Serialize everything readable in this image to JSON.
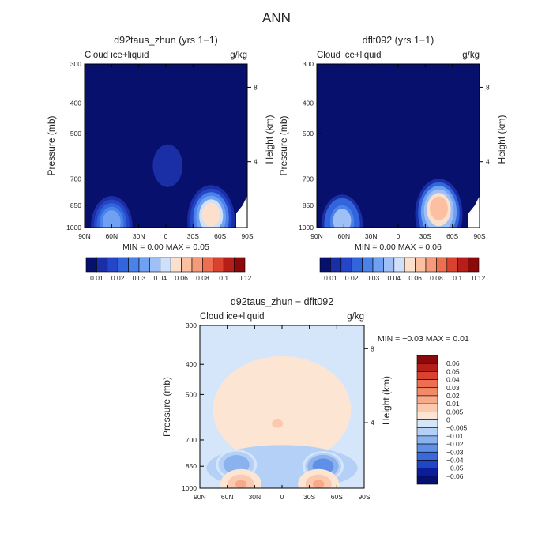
{
  "page": {
    "title": "ANN"
  },
  "chart_data": [
    {
      "type": "heatmap",
      "title": "d92taus_zhun (yrs 1−1)",
      "left_label": "Cloud ice+liquid",
      "units": "g/kg",
      "xlabel": "",
      "ylabel": "Pressure (mb)",
      "y2label": "Height (km)",
      "x_ticks": [
        "90N",
        "60N",
        "30N",
        "0",
        "30S",
        "60S",
        "90S"
      ],
      "y_ticks": [
        300,
        400,
        500,
        700,
        850,
        1000
      ],
      "y2_ticks": [
        8,
        4
      ],
      "ylim": [
        1000,
        300
      ],
      "stats": {
        "min_label": "MIN =",
        "min": "0.00",
        "max_label": "MAX =",
        "max": "0.05"
      },
      "colorbar": {
        "labels": [
          "0.01",
          "0.02",
          "0.03",
          "0.04",
          "0.06",
          "0.08",
          "0.1",
          "0.12"
        ],
        "colors": [
          "#08106e",
          "#1a2fa6",
          "#2546c8",
          "#3264dc",
          "#4a82ea",
          "#6fa0f2",
          "#9ec0f7",
          "#cfe0fb",
          "#fde0cc",
          "#fbbfa2",
          "#f59a7a",
          "#ec6f52",
          "#d8422f",
          "#b61e19",
          "#8a0a0c"
        ]
      },
      "features": [
        {
          "lat": 60,
          "p": 940,
          "peak": 0.03
        },
        {
          "lat": -50,
          "p": 890,
          "peak": 0.05
        },
        {
          "lat": -2,
          "p": 610,
          "peak": 0.01
        }
      ]
    },
    {
      "type": "heatmap",
      "title": "dflt092 (yrs 1−1)",
      "left_label": "Cloud ice+liquid",
      "units": "g/kg",
      "xlabel": "",
      "ylabel": "Pressure (mb)",
      "y2label": "Height (km)",
      "x_ticks": [
        "90N",
        "60N",
        "30N",
        "0",
        "30S",
        "60S",
        "90S"
      ],
      "y_ticks": [
        300,
        400,
        500,
        700,
        850,
        1000
      ],
      "y2_ticks": [
        8,
        4
      ],
      "ylim": [
        1000,
        300
      ],
      "stats": {
        "min_label": "MIN =",
        "min": "0.00",
        "max_label": "MAX =",
        "max": "0.06"
      },
      "colorbar": {
        "labels": [
          "0.01",
          "0.02",
          "0.03",
          "0.04",
          "0.06",
          "0.08",
          "0.1",
          "0.12"
        ],
        "colors": [
          "#08106e",
          "#1a2fa6",
          "#2546c8",
          "#3264dc",
          "#4a82ea",
          "#6fa0f2",
          "#9ec0f7",
          "#cfe0fb",
          "#fde0cc",
          "#fbbfa2",
          "#f59a7a",
          "#ec6f52",
          "#d8422f",
          "#b61e19",
          "#8a0a0c"
        ]
      },
      "features": [
        {
          "lat": 62,
          "p": 930,
          "peak": 0.035
        },
        {
          "lat": -45,
          "p": 850,
          "peak": 0.06
        }
      ]
    },
    {
      "type": "heatmap",
      "title": "d92taus_zhun − dflt092",
      "left_label": "Cloud ice+liquid",
      "units": "g/kg",
      "xlabel": "",
      "ylabel": "Pressure (mb)",
      "y2label": "Height (km)",
      "x_ticks": [
        "90N",
        "60N",
        "30N",
        "0",
        "30S",
        "60S",
        "90S"
      ],
      "y_ticks": [
        300,
        400,
        500,
        700,
        850,
        1000
      ],
      "y2_ticks": [
        8,
        4
      ],
      "ylim": [
        1000,
        300
      ],
      "stats": {
        "min_label": "MIN =",
        "min": "−0.03",
        "max_label": "MAX =",
        "max": "0.01"
      },
      "colorbar": {
        "labels": [
          "0.06",
          "0.05",
          "0.04",
          "0.03",
          "0.02",
          "0.01",
          "0.005",
          "0",
          "−0.005",
          "−0.01",
          "−0.02",
          "−0.03",
          "−0.04",
          "−0.05",
          "−0.06"
        ],
        "colors": [
          "#8a0a0c",
          "#b61e19",
          "#d8422f",
          "#ec6f52",
          "#f38a66",
          "#f8a98a",
          "#fbc9ae",
          "#fde5d4",
          "#d6e6fa",
          "#b4d0f6",
          "#8ab2ef",
          "#5f8fe6",
          "#3a6ad9",
          "#2046c6",
          "#0c1d9c",
          "#061070"
        ]
      },
      "features": [
        {
          "lat": 50,
          "p": 840,
          "peak": -0.02
        },
        {
          "lat": -45,
          "p": 850,
          "peak": -0.03
        },
        {
          "lat": 45,
          "p": 970,
          "peak": 0.01
        },
        {
          "lat": -40,
          "p": 970,
          "peak": 0.01
        },
        {
          "lat": 5,
          "p": 620,
          "peak": 0.005
        }
      ]
    }
  ]
}
